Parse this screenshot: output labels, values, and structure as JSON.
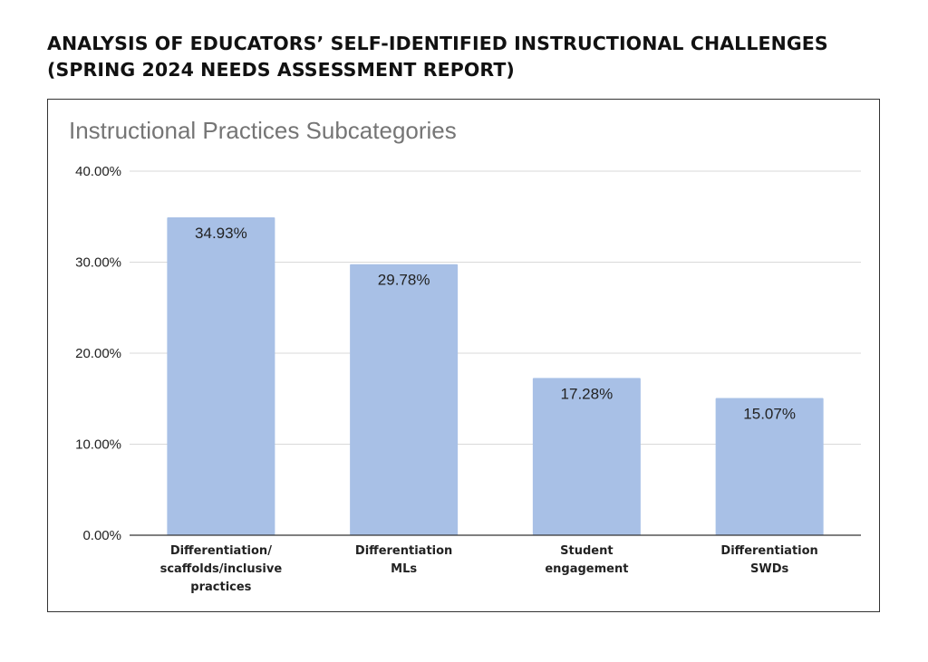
{
  "heading": {
    "line1": "ANALYSIS OF EDUCATORS’ SELF-IDENTIFIED INSTRUCTIONAL CHALLENGES",
    "line2": "(SPRING 2024 NEEDS ASSESSMENT REPORT)"
  },
  "colors": {
    "bar": "#a8c0e6",
    "grid": "#d9d9d9",
    "axis": "#333333"
  },
  "chart_data": {
    "type": "bar",
    "title": "Instructional Practices Subcategories",
    "categories": [
      [
        "Differentiation/",
        "scaffolds/inclusive",
        "practices"
      ],
      [
        "Differentiation",
        "MLs"
      ],
      [
        "Student",
        "engagement"
      ],
      [
        "Differentiation",
        "SWDs"
      ]
    ],
    "values": [
      34.93,
      29.78,
      17.28,
      15.07
    ],
    "value_labels": [
      "34.93%",
      "29.78%",
      "17.28%",
      "15.07%"
    ],
    "ylim": [
      0,
      40
    ],
    "yticks": [
      0,
      10,
      20,
      30,
      40
    ],
    "ytick_labels": [
      "0.00%",
      "10.00%",
      "20.00%",
      "30.00%",
      "40.00%"
    ],
    "xlabel": "",
    "ylabel": "",
    "grid": true,
    "legend": "none"
  }
}
